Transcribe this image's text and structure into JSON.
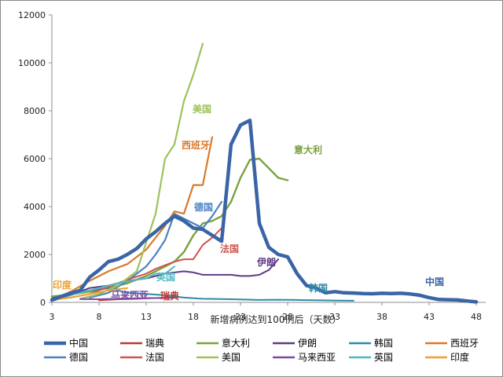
{
  "chart_data": {
    "type": "line",
    "title": "",
    "xlabel": "新增病例达到100例后（天数）",
    "ylabel": "",
    "xlim": [
      3,
      49
    ],
    "ylim": [
      0,
      12000
    ],
    "xticks": [
      "3",
      "8",
      "13",
      "18",
      "23",
      "28",
      "33",
      "38",
      "43",
      "48"
    ],
    "yticks": [
      "0",
      "2000",
      "4000",
      "6000",
      "8000",
      "10000",
      "12000"
    ],
    "grid": false,
    "legend": "bottom",
    "series": [
      {
        "name": "中国",
        "label": "中国",
        "color": "#3a64a6",
        "width": 4.5,
        "points": [
          [
            3,
            100
          ],
          [
            4,
            250
          ],
          [
            5,
            380
          ],
          [
            6,
            500
          ],
          [
            7,
            1050
          ],
          [
            8,
            1350
          ],
          [
            9,
            1700
          ],
          [
            10,
            1800
          ],
          [
            11,
            2000
          ],
          [
            12,
            2250
          ],
          [
            13,
            2650
          ],
          [
            14,
            2950
          ],
          [
            15,
            3300
          ],
          [
            16,
            3600
          ],
          [
            17,
            3400
          ],
          [
            18,
            3100
          ],
          [
            19,
            3050
          ],
          [
            20,
            2800
          ],
          [
            21,
            2550
          ],
          [
            22,
            6600
          ],
          [
            23,
            7400
          ],
          [
            24,
            7600
          ],
          [
            25,
            3300
          ],
          [
            26,
            2300
          ],
          [
            27,
            2000
          ],
          [
            28,
            1900
          ],
          [
            29,
            1200
          ],
          [
            30,
            700
          ],
          [
            31,
            600
          ],
          [
            32,
            400
          ],
          [
            33,
            450
          ],
          [
            34,
            400
          ],
          [
            35,
            390
          ],
          [
            36,
            370
          ],
          [
            37,
            360
          ],
          [
            38,
            380
          ],
          [
            39,
            370
          ],
          [
            40,
            380
          ],
          [
            41,
            350
          ],
          [
            42,
            300
          ],
          [
            43,
            200
          ],
          [
            44,
            120
          ],
          [
            45,
            110
          ],
          [
            46,
            100
          ],
          [
            47,
            60
          ],
          [
            48,
            20
          ]
        ]
      },
      {
        "name": "瑞典",
        "label": "瑞典",
        "color": "#b83a36",
        "width": 2,
        "points": [
          [
            8,
            90
          ],
          [
            9,
            110
          ],
          [
            10,
            130
          ],
          [
            11,
            140
          ],
          [
            12,
            150
          ],
          [
            13,
            170
          ],
          [
            14,
            180
          ],
          [
            15,
            190
          ],
          [
            16,
            200
          ]
        ]
      },
      {
        "name": "意大利",
        "label": "意大利",
        "color": "#7aa23e",
        "width": 2.4,
        "points": [
          [
            3,
            250
          ],
          [
            5,
            330
          ],
          [
            7,
            450
          ],
          [
            9,
            600
          ],
          [
            11,
            800
          ],
          [
            13,
            1100
          ],
          [
            15,
            1500
          ],
          [
            16,
            1700
          ],
          [
            17,
            2100
          ],
          [
            18,
            2800
          ],
          [
            19,
            3300
          ],
          [
            20,
            3400
          ],
          [
            21,
            3600
          ],
          [
            22,
            4200
          ],
          [
            23,
            5200
          ],
          [
            24,
            5950
          ],
          [
            25,
            6000
          ],
          [
            26,
            5600
          ],
          [
            27,
            5200
          ],
          [
            28,
            5100
          ]
        ]
      },
      {
        "name": "伊朗",
        "label": "伊朗",
        "color": "#5e3b86",
        "width": 2,
        "points": [
          [
            3,
            60
          ],
          [
            5,
            300
          ],
          [
            7,
            600
          ],
          [
            9,
            700
          ],
          [
            11,
            900
          ],
          [
            13,
            1000
          ],
          [
            15,
            1200
          ],
          [
            16,
            1250
          ],
          [
            17,
            1300
          ],
          [
            18,
            1250
          ],
          [
            19,
            1150
          ],
          [
            20,
            1150
          ],
          [
            21,
            1150
          ],
          [
            22,
            1150
          ],
          [
            23,
            1100
          ],
          [
            24,
            1100
          ],
          [
            25,
            1150
          ],
          [
            26,
            1350
          ],
          [
            27,
            1800
          ]
        ]
      },
      {
        "name": "韩国",
        "label": "韩国",
        "color": "#2e8aa8",
        "width": 2,
        "points": [
          [
            3,
            180
          ],
          [
            5,
            350
          ],
          [
            7,
            500
          ],
          [
            9,
            600
          ],
          [
            11,
            400
          ],
          [
            13,
            350
          ],
          [
            15,
            300
          ],
          [
            17,
            200
          ],
          [
            19,
            150
          ],
          [
            21,
            140
          ],
          [
            23,
            120
          ],
          [
            25,
            100
          ],
          [
            27,
            110
          ],
          [
            29,
            100
          ],
          [
            31,
            90
          ],
          [
            33,
            80
          ],
          [
            35,
            70
          ]
        ]
      },
      {
        "name": "西班牙",
        "label": "西班牙",
        "color": "#d97a2b",
        "width": 2.2,
        "points": [
          [
            3,
            100
          ],
          [
            5,
            450
          ],
          [
            7,
            900
          ],
          [
            9,
            1300
          ],
          [
            11,
            1600
          ],
          [
            13,
            2200
          ],
          [
            14,
            2700
          ],
          [
            15,
            3200
          ],
          [
            16,
            3800
          ],
          [
            17,
            3700
          ],
          [
            18,
            4900
          ],
          [
            19,
            4900
          ],
          [
            20,
            6900
          ]
        ]
      },
      {
        "name": "德国",
        "label": "德国",
        "color": "#4a82c4",
        "width": 2.2,
        "points": [
          [
            7,
            200
          ],
          [
            9,
            400
          ],
          [
            11,
            900
          ],
          [
            13,
            1500
          ],
          [
            14,
            2000
          ],
          [
            15,
            2600
          ],
          [
            16,
            3700
          ],
          [
            17,
            3500
          ],
          [
            18,
            3300
          ],
          [
            19,
            3100
          ],
          [
            20,
            3600
          ],
          [
            21,
            4200
          ]
        ]
      },
      {
        "name": "法国",
        "label": "法国",
        "color": "#d05550",
        "width": 2,
        "points": [
          [
            5,
            200
          ],
          [
            7,
            350
          ],
          [
            9,
            650
          ],
          [
            11,
            950
          ],
          [
            13,
            1200
          ],
          [
            14,
            1400
          ],
          [
            15,
            1550
          ],
          [
            16,
            1700
          ],
          [
            17,
            1800
          ],
          [
            18,
            1800
          ],
          [
            19,
            2400
          ],
          [
            20,
            2700
          ],
          [
            21,
            3100
          ]
        ]
      },
      {
        "name": "美国",
        "label": "美国",
        "color": "#9dc25a",
        "width": 2.2,
        "points": [
          [
            6,
            150
          ],
          [
            8,
            350
          ],
          [
            10,
            700
          ],
          [
            12,
            1300
          ],
          [
            13,
            2500
          ],
          [
            14,
            3700
          ],
          [
            15,
            6000
          ],
          [
            16,
            6600
          ],
          [
            17,
            8400
          ],
          [
            18,
            9500
          ],
          [
            19,
            10800
          ]
        ]
      },
      {
        "name": "马来西亚",
        "label": "马来西亚",
        "color": "#7a4aa6",
        "width": 2,
        "points": [
          [
            6,
            140
          ],
          [
            8,
            130
          ],
          [
            10,
            150
          ],
          [
            12,
            170
          ],
          [
            14,
            180
          ],
          [
            16,
            200
          ]
        ]
      },
      {
        "name": "英国",
        "label": "英国",
        "color": "#4fb8c4",
        "width": 2,
        "points": [
          [
            4,
            200
          ],
          [
            6,
            400
          ],
          [
            8,
            600
          ],
          [
            10,
            800
          ],
          [
            12,
            950
          ],
          [
            13,
            1000
          ],
          [
            14,
            1200
          ],
          [
            15,
            1200
          ],
          [
            16,
            1500
          ]
        ]
      },
      {
        "name": "印度",
        "label": "印度",
        "color": "#f0a030",
        "width": 2,
        "points": [
          [
            3,
            100
          ],
          [
            5,
            200
          ],
          [
            7,
            350
          ],
          [
            9,
            500
          ],
          [
            11,
            600
          ]
        ]
      }
    ]
  }
}
